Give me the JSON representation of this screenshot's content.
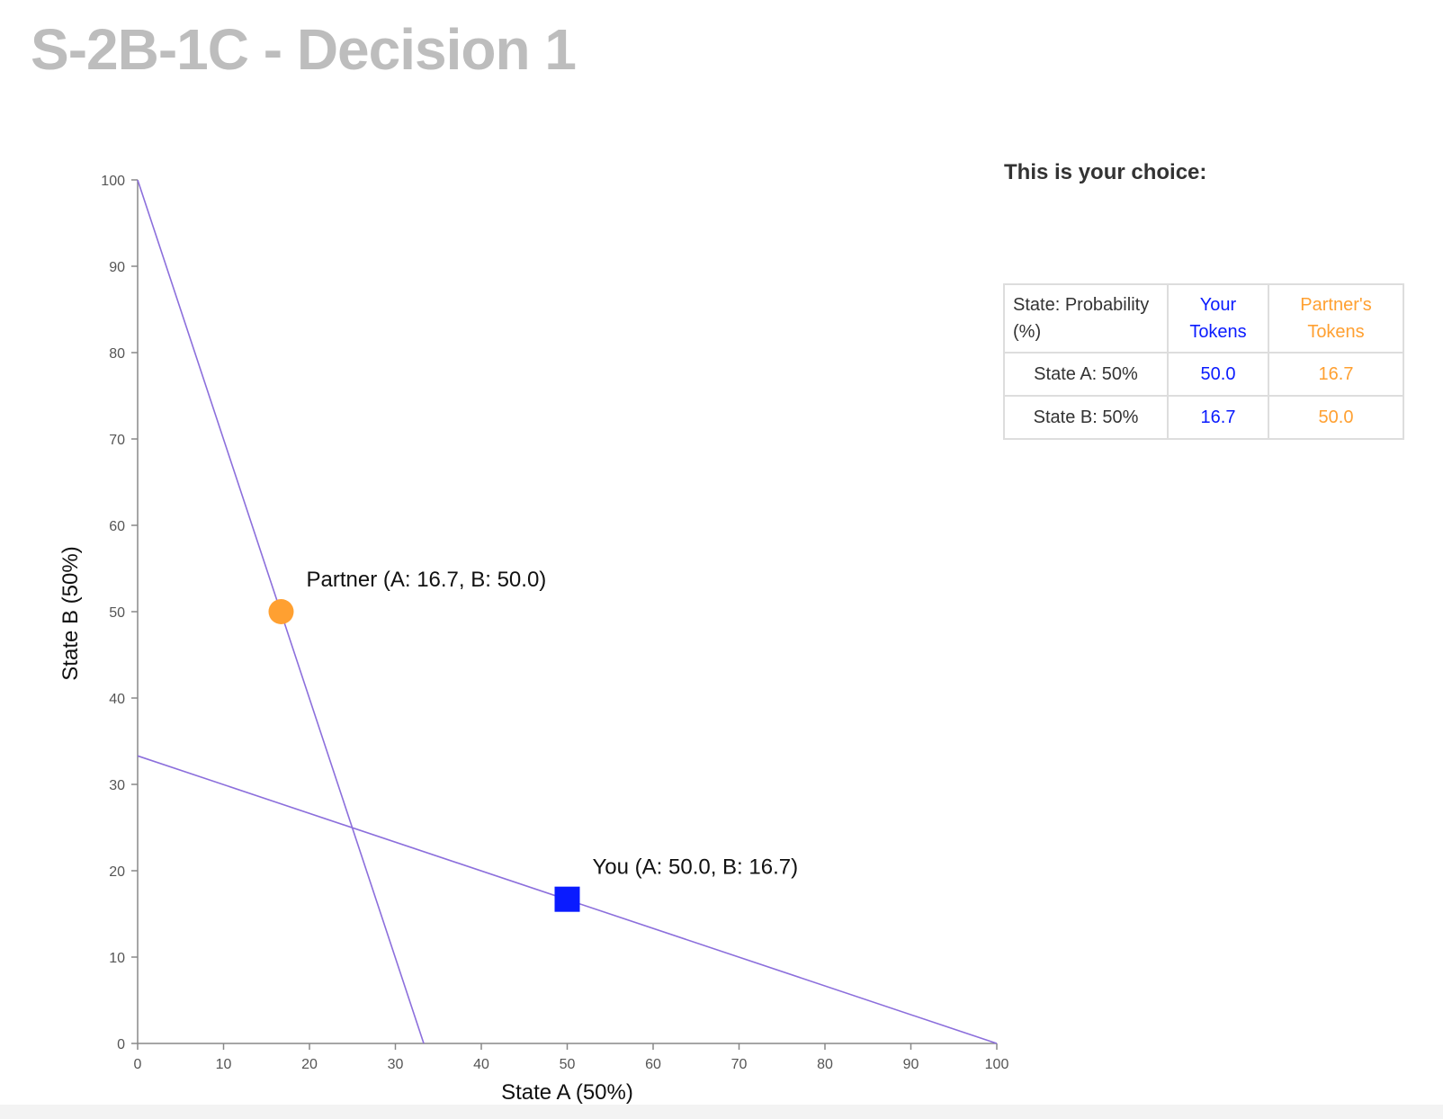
{
  "page": {
    "title": "S-2B-1C - Decision 1"
  },
  "choice_panel": {
    "heading": "This is your choice:",
    "table": {
      "headers": {
        "probability": "State: Probability (%)",
        "your_tokens": "Your Tokens",
        "partner_tokens": "Partner's Tokens"
      },
      "rows": [
        {
          "state": "State A: 50%",
          "your": "50.0",
          "partner": "16.7"
        },
        {
          "state": "State B: 50%",
          "your": "16.7",
          "partner": "50.0"
        }
      ]
    }
  },
  "colors": {
    "you": "#0a1bff",
    "partner": "#ffa031",
    "budget_line": "#8c6fdc",
    "axis": "#888888",
    "title": "#bdbdbd"
  },
  "chart_data": {
    "type": "scatter",
    "xlabel": "State A (50%)",
    "ylabel": "State B (50%)",
    "xlim": [
      0,
      100
    ],
    "ylim": [
      0,
      100
    ],
    "x_ticks": [
      0,
      10,
      20,
      30,
      40,
      50,
      60,
      70,
      80,
      90,
      100
    ],
    "y_ticks": [
      0,
      10,
      20,
      30,
      40,
      50,
      60,
      70,
      80,
      90,
      100
    ],
    "grid": false,
    "lines": [
      {
        "x": [
          0,
          33.3
        ],
        "y": [
          100,
          0
        ]
      },
      {
        "x": [
          0,
          100
        ],
        "y": [
          33.3,
          0
        ]
      }
    ],
    "points": [
      {
        "label": "Partner (A: 16.7, B: 50.0)",
        "x": 16.7,
        "y": 50.0,
        "marker": "circle"
      },
      {
        "label": "You (A: 50.0, B: 16.7)",
        "x": 50.0,
        "y": 16.7,
        "marker": "square"
      }
    ]
  }
}
